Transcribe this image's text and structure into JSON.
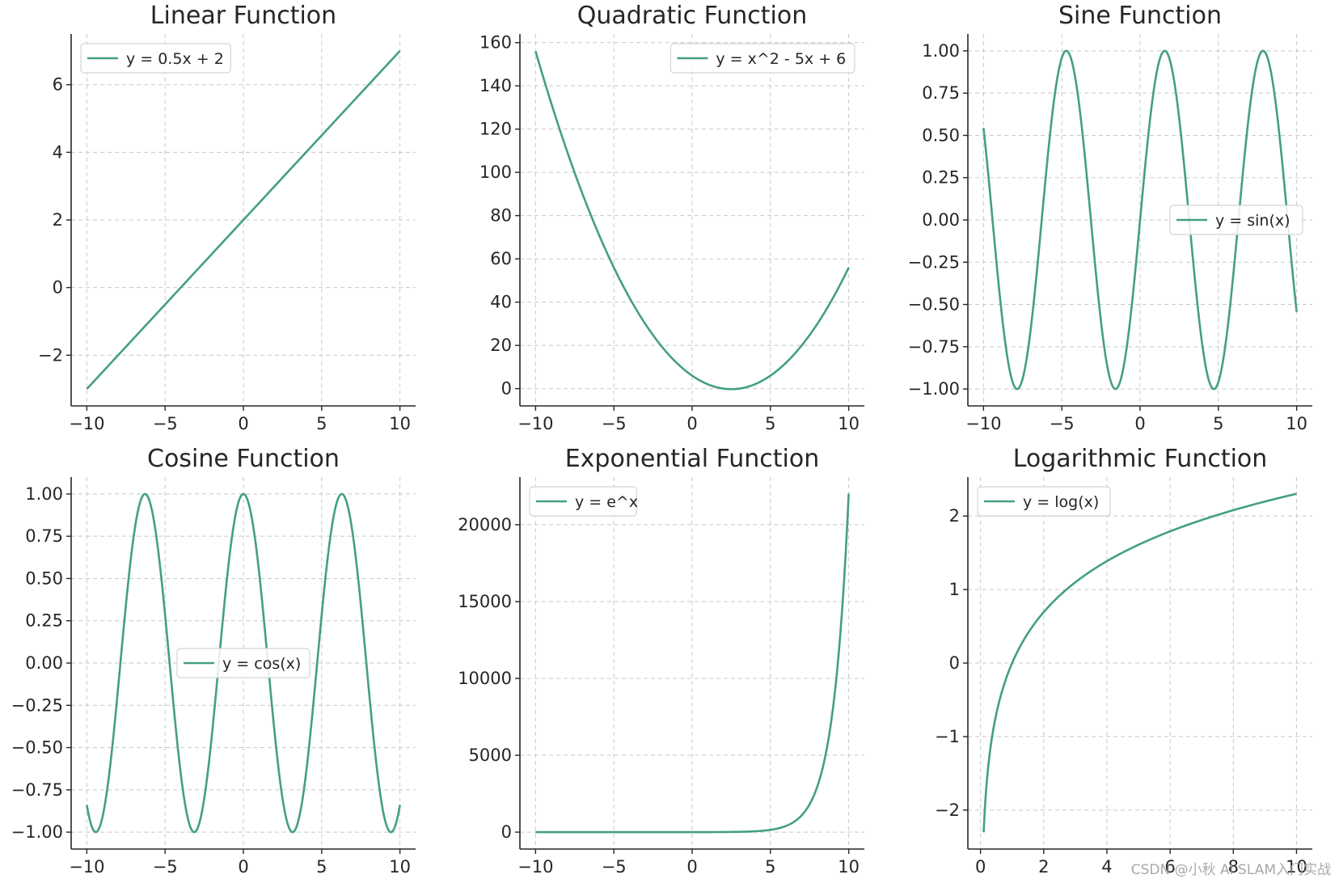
{
  "watermark": "CSDN @小秋 AI SLAM入门实战",
  "colors": {
    "line": "#44a07f",
    "grid": "#c8c8c8",
    "axis": "#262626"
  },
  "chart_data": [
    {
      "type": "line",
      "title": "Linear Function",
      "xlabel": "",
      "ylabel": "",
      "series": [
        {
          "name": "y = 0.5x + 2",
          "x": [
            -10,
            10
          ],
          "y": [
            -3,
            7
          ]
        }
      ],
      "xlim": [
        -11,
        11
      ],
      "ylim": [
        -3.5,
        7.5
      ],
      "xticks": [
        -10,
        -5,
        0,
        5,
        10
      ],
      "xtick_labels": [
        "−10",
        "−5",
        "0",
        "5",
        "10"
      ],
      "yticks": [
        -2,
        0,
        2,
        4,
        6
      ],
      "ytick_labels": [
        "−2",
        "0",
        "2",
        "4",
        "6"
      ],
      "grid": true,
      "legend": "upper left"
    },
    {
      "type": "line",
      "title": "Quadratic Function",
      "xlabel": "",
      "ylabel": "",
      "series": [
        {
          "name": "y = x^2 - 5x + 6",
          "x": [
            -10,
            -9,
            -8,
            -7,
            -6,
            -5,
            -4,
            -3,
            -2,
            -1,
            0,
            1,
            2,
            2.5,
            3,
            4,
            5,
            6,
            7,
            8,
            9,
            10
          ],
          "y": [
            156,
            132,
            110,
            90,
            72,
            56,
            42,
            30,
            20,
            12,
            6,
            2,
            0,
            -0.25,
            0,
            2,
            6,
            12,
            20,
            30,
            42,
            56
          ]
        }
      ],
      "xlim": [
        -11,
        11
      ],
      "ylim": [
        -8,
        164
      ],
      "xticks": [
        -10,
        -5,
        0,
        5,
        10
      ],
      "xtick_labels": [
        "−10",
        "−5",
        "0",
        "5",
        "10"
      ],
      "yticks": [
        0,
        20,
        40,
        60,
        80,
        100,
        120,
        140,
        160
      ],
      "ytick_labels": [
        "0",
        "20",
        "40",
        "60",
        "80",
        "100",
        "120",
        "140",
        "160"
      ],
      "grid": true,
      "legend": "upper right"
    },
    {
      "type": "line",
      "title": "Sine Function",
      "xlabel": "",
      "ylabel": "",
      "series": [
        {
          "name": "y = sin(x)",
          "x": [
            -10,
            -9,
            -8,
            -7.854,
            -7,
            -6,
            -5,
            -4.712,
            -4,
            -3,
            -2,
            -1.571,
            -1,
            0,
            1,
            1.571,
            2,
            3,
            4,
            4.712,
            5,
            6,
            7,
            7.854,
            8,
            9,
            10
          ],
          "y": [
            0.544,
            -0.412,
            -0.989,
            -1.0,
            -0.657,
            0.279,
            0.959,
            1.0,
            0.757,
            -0.141,
            -0.909,
            -1.0,
            -0.841,
            0,
            0.841,
            1.0,
            0.909,
            0.141,
            -0.757,
            -1.0,
            -0.959,
            -0.279,
            0.657,
            1.0,
            0.989,
            0.412,
            -0.544
          ]
        }
      ],
      "xlim": [
        -11,
        11
      ],
      "ylim": [
        -1.1,
        1.1
      ],
      "xticks": [
        -10,
        -5,
        0,
        5,
        10
      ],
      "xtick_labels": [
        "−10",
        "−5",
        "0",
        "5",
        "10"
      ],
      "yticks": [
        -1.0,
        -0.75,
        -0.5,
        -0.25,
        0.0,
        0.25,
        0.5,
        0.75,
        1.0
      ],
      "ytick_labels": [
        "−1.00",
        "−0.75",
        "−0.50",
        "−0.25",
        "0.00",
        "0.25",
        "0.50",
        "0.75",
        "1.00"
      ],
      "grid": true,
      "legend": "center right"
    },
    {
      "type": "line",
      "title": "Cosine Function",
      "xlabel": "",
      "ylabel": "",
      "series": [
        {
          "name": "y = cos(x)",
          "x": [
            -10,
            -9.425,
            -9,
            -8,
            -7,
            -6.283,
            -6,
            -5,
            -4,
            -3.142,
            -3,
            -2,
            -1,
            0,
            1,
            2,
            3,
            3.142,
            4,
            5,
            6,
            6.283,
            7,
            8,
            9,
            9.425,
            10
          ],
          "y": [
            -0.839,
            -1.0,
            -0.911,
            -0.146,
            0.754,
            1.0,
            0.96,
            0.284,
            -0.654,
            -1.0,
            -0.99,
            -0.416,
            0.54,
            1.0,
            0.54,
            -0.416,
            -0.99,
            -1.0,
            -0.654,
            0.284,
            0.96,
            1.0,
            0.754,
            -0.146,
            -0.911,
            -1.0,
            -0.839
          ]
        }
      ],
      "xlim": [
        -11,
        11
      ],
      "ylim": [
        -1.1,
        1.1
      ],
      "xticks": [
        -10,
        -5,
        0,
        5,
        10
      ],
      "xtick_labels": [
        "−10",
        "−5",
        "0",
        "5",
        "10"
      ],
      "yticks": [
        -1.0,
        -0.75,
        -0.5,
        -0.25,
        0.0,
        0.25,
        0.5,
        0.75,
        1.0
      ],
      "ytick_labels": [
        "−1.00",
        "−0.75",
        "−0.50",
        "−0.25",
        "0.00",
        "0.25",
        "0.50",
        "0.75",
        "1.00"
      ],
      "grid": true,
      "legend": "center"
    },
    {
      "type": "line",
      "title": "Exponential Function",
      "xlabel": "",
      "ylabel": "",
      "series": [
        {
          "name": "y = e^x",
          "x": [
            -10,
            -5,
            0,
            2,
            3,
            4,
            5,
            5.5,
            6,
            6.5,
            7,
            7.5,
            8,
            8.5,
            9,
            9.25,
            9.5,
            9.75,
            10
          ],
          "y": [
            0,
            0.007,
            1,
            7.4,
            20.1,
            54.6,
            148.4,
            244.7,
            403.4,
            665.1,
            1096.6,
            1808.0,
            2981.0,
            4914.8,
            8103.1,
            10404.6,
            13359.7,
            17154.2,
            22026.5
          ]
        }
      ],
      "xlim": [
        -11,
        11
      ],
      "ylim": [
        -1100,
        23100
      ],
      "xticks": [
        -10,
        -5,
        0,
        5,
        10
      ],
      "xtick_labels": [
        "−10",
        "−5",
        "0",
        "5",
        "10"
      ],
      "yticks": [
        0,
        5000,
        10000,
        15000,
        20000
      ],
      "ytick_labels": [
        "0",
        "5000",
        "10000",
        "15000",
        "20000"
      ],
      "grid": true,
      "legend": "upper left"
    },
    {
      "type": "line",
      "title": "Logarithmic Function",
      "xlabel": "",
      "ylabel": "",
      "series": [
        {
          "name": "y = log(x)",
          "x": [
            0.1,
            0.15,
            0.2,
            0.3,
            0.4,
            0.5,
            0.7,
            1,
            1.5,
            2,
            3,
            4,
            5,
            6,
            7,
            8,
            9,
            10
          ],
          "y": [
            -2.303,
            -1.897,
            -1.609,
            -1.204,
            -0.916,
            -0.693,
            -0.357,
            0,
            0.405,
            0.693,
            1.099,
            1.386,
            1.609,
            1.792,
            1.946,
            2.079,
            2.197,
            2.303
          ]
        }
      ],
      "xlim": [
        -0.4,
        10.5
      ],
      "ylim": [
        -2.53,
        2.53
      ],
      "xticks": [
        0,
        2,
        4,
        6,
        8,
        10
      ],
      "xtick_labels": [
        "0",
        "2",
        "4",
        "6",
        "8",
        "10"
      ],
      "yticks": [
        -2,
        -1,
        0,
        1,
        2
      ],
      "ytick_labels": [
        "−2",
        "−1",
        "0",
        "1",
        "2"
      ],
      "grid": true,
      "legend": "upper left"
    }
  ]
}
